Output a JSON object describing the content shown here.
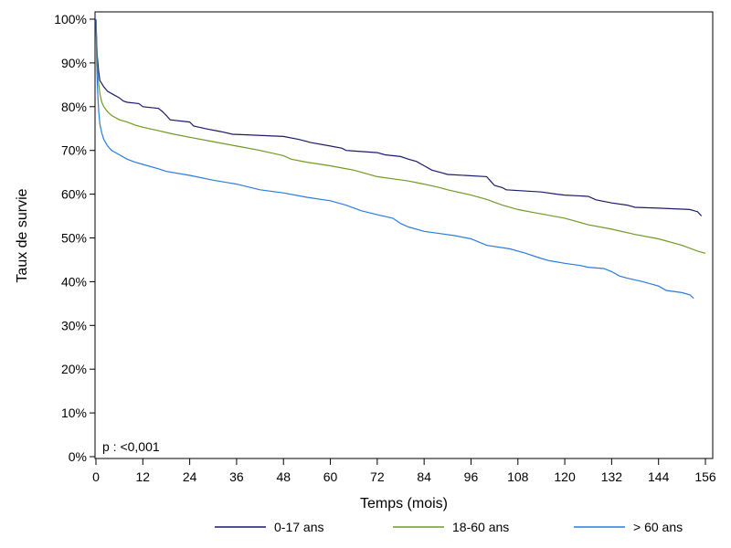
{
  "chart_data": {
    "type": "line",
    "title": "",
    "xlabel": "Temps (mois)",
    "ylabel": "Taux de survie",
    "xlim": [
      0,
      156
    ],
    "ylim": [
      0,
      100
    ],
    "x_ticks": [
      0,
      12,
      24,
      36,
      48,
      60,
      72,
      84,
      96,
      108,
      120,
      132,
      144,
      156
    ],
    "y_ticks": [
      0,
      10,
      20,
      30,
      40,
      50,
      60,
      70,
      80,
      90,
      100
    ],
    "y_tick_suffix": "%",
    "grid": false,
    "legend_position": "bottom",
    "annotation": "p : <0,001",
    "series": [
      {
        "name": "0-17 ans",
        "color": "#1a1a6e",
        "points": [
          [
            0,
            100
          ],
          [
            0.3,
            92
          ],
          [
            0.7,
            88
          ],
          [
            1,
            86
          ],
          [
            2,
            84.5
          ],
          [
            3,
            83.5
          ],
          [
            5,
            82.5
          ],
          [
            6,
            82
          ],
          [
            7,
            81.3
          ],
          [
            8,
            81
          ],
          [
            11,
            80.7
          ],
          [
            12,
            80
          ],
          [
            16,
            79.6
          ],
          [
            17,
            78.9
          ],
          [
            18,
            78
          ],
          [
            19,
            77
          ],
          [
            24,
            76.5
          ],
          [
            25,
            75.6
          ],
          [
            28,
            75
          ],
          [
            32,
            74.3
          ],
          [
            35,
            73.7
          ],
          [
            40,
            73.5
          ],
          [
            48,
            73.2
          ],
          [
            52,
            72.5
          ],
          [
            55,
            71.8
          ],
          [
            60,
            71
          ],
          [
            63,
            70.5
          ],
          [
            64,
            70
          ],
          [
            72,
            69.5
          ],
          [
            74,
            69
          ],
          [
            78,
            68.6
          ],
          [
            80,
            68
          ],
          [
            82,
            67.5
          ],
          [
            84,
            66.5
          ],
          [
            86,
            65.5
          ],
          [
            88,
            65
          ],
          [
            90,
            64.5
          ],
          [
            100,
            64
          ],
          [
            101,
            63
          ],
          [
            102,
            62
          ],
          [
            104,
            61.5
          ],
          [
            105,
            61
          ],
          [
            114,
            60.5
          ],
          [
            118,
            60
          ],
          [
            120,
            59.8
          ],
          [
            126,
            59.5
          ],
          [
            128,
            58.7
          ],
          [
            132,
            58
          ],
          [
            136,
            57.5
          ],
          [
            138,
            57
          ],
          [
            144,
            56.8
          ],
          [
            152,
            56.5
          ],
          [
            154,
            56
          ],
          [
            155,
            55
          ]
        ]
      },
      {
        "name": "18-60 ans",
        "color": "#6f9a22",
        "points": [
          [
            0,
            100
          ],
          [
            0.3,
            90
          ],
          [
            0.6,
            86
          ],
          [
            1,
            83
          ],
          [
            1.5,
            81
          ],
          [
            2,
            80
          ],
          [
            3,
            78.8
          ],
          [
            4,
            78
          ],
          [
            6,
            77
          ],
          [
            8,
            76.5
          ],
          [
            10,
            75.8
          ],
          [
            12,
            75.3
          ],
          [
            16,
            74.5
          ],
          [
            20,
            73.7
          ],
          [
            24,
            73
          ],
          [
            30,
            72
          ],
          [
            36,
            71
          ],
          [
            42,
            70
          ],
          [
            48,
            68.8
          ],
          [
            50,
            68
          ],
          [
            54,
            67.3
          ],
          [
            60,
            66.5
          ],
          [
            66,
            65.5
          ],
          [
            72,
            64
          ],
          [
            76,
            63.5
          ],
          [
            80,
            63
          ],
          [
            84,
            62.3
          ],
          [
            88,
            61.5
          ],
          [
            90,
            61
          ],
          [
            96,
            59.8
          ],
          [
            100,
            58.8
          ],
          [
            104,
            57.5
          ],
          [
            108,
            56.5
          ],
          [
            112,
            55.8
          ],
          [
            114,
            55.5
          ],
          [
            120,
            54.5
          ],
          [
            126,
            53
          ],
          [
            132,
            52
          ],
          [
            138,
            50.8
          ],
          [
            144,
            49.8
          ],
          [
            150,
            48.3
          ],
          [
            154,
            47
          ],
          [
            156,
            46.5
          ]
        ]
      },
      {
        "name": "> 60 ans",
        "color": "#2a7ae2",
        "points": [
          [
            0,
            100
          ],
          [
            0.2,
            90
          ],
          [
            0.4,
            84
          ],
          [
            0.7,
            79
          ],
          [
            1,
            76
          ],
          [
            1.5,
            74
          ],
          [
            2,
            72.5
          ],
          [
            3,
            71
          ],
          [
            4,
            70
          ],
          [
            6,
            69
          ],
          [
            8,
            68
          ],
          [
            10,
            67.3
          ],
          [
            12,
            66.8
          ],
          [
            16,
            65.8
          ],
          [
            18,
            65.2
          ],
          [
            24,
            64.3
          ],
          [
            30,
            63.2
          ],
          [
            36,
            62.3
          ],
          [
            42,
            61
          ],
          [
            48,
            60.3
          ],
          [
            54,
            59.3
          ],
          [
            60,
            58.5
          ],
          [
            64,
            57.5
          ],
          [
            68,
            56.2
          ],
          [
            72,
            55.3
          ],
          [
            76,
            54.5
          ],
          [
            78,
            53.3
          ],
          [
            80,
            52.5
          ],
          [
            84,
            51.5
          ],
          [
            88,
            51
          ],
          [
            92,
            50.5
          ],
          [
            96,
            49.8
          ],
          [
            100,
            48.3
          ],
          [
            106,
            47.5
          ],
          [
            110,
            46.5
          ],
          [
            114,
            45.3
          ],
          [
            116,
            44.8
          ],
          [
            120,
            44.2
          ],
          [
            124,
            43.7
          ],
          [
            126,
            43.3
          ],
          [
            130,
            43
          ],
          [
            132,
            42.3
          ],
          [
            134,
            41.3
          ],
          [
            136,
            40.8
          ],
          [
            140,
            40
          ],
          [
            144,
            39
          ],
          [
            146,
            38
          ],
          [
            150,
            37.5
          ],
          [
            152,
            37
          ],
          [
            153,
            36.2
          ]
        ]
      }
    ]
  }
}
